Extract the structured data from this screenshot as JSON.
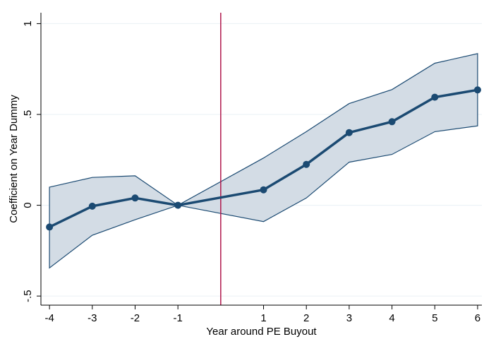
{
  "chart_data": {
    "type": "line",
    "title": "",
    "xlabel": "Year around PE Buyout",
    "ylabel": "Coefficient on Year Dummy",
    "x_ticks": [
      -4,
      -3,
      -2,
      -1,
      1,
      2,
      3,
      4,
      5,
      6
    ],
    "x_tick_labels": [
      "-4",
      "-3",
      "-2",
      "-1",
      "1",
      "2",
      "3",
      "4",
      "5",
      "6"
    ],
    "y_ticks": [
      -0.5,
      0,
      0.5,
      1
    ],
    "y_tick_labels": [
      "-.5",
      "0",
      ".5",
      "1"
    ],
    "xlim": [
      -4.2,
      6.1
    ],
    "ylim": [
      -0.55,
      1.06
    ],
    "grid": "horizontal",
    "x": [
      -4,
      -3,
      -2,
      -1,
      1,
      2,
      3,
      4,
      5,
      6
    ],
    "series": [
      {
        "role": "coefficient",
        "values": [
          -0.12,
          -0.005,
          0.04,
          0.0,
          0.085,
          0.225,
          0.4,
          0.46,
          0.595,
          0.635
        ]
      },
      {
        "role": "ci_upper",
        "values": [
          0.1,
          0.153,
          0.162,
          0.0,
          0.26,
          0.405,
          0.56,
          0.637,
          0.782,
          0.835
        ]
      },
      {
        "role": "ci_lower",
        "values": [
          -0.345,
          -0.165,
          -0.08,
          0.0,
          -0.09,
          0.04,
          0.237,
          0.28,
          0.405,
          0.437
        ]
      }
    ],
    "reference_line_x": 0,
    "colors": {
      "line": "#1b4a72",
      "band_fill": "#d3dce5",
      "band_edge": "#1b4a72",
      "reference_line": "#b0174b",
      "grid": "#eaf0f4"
    }
  }
}
